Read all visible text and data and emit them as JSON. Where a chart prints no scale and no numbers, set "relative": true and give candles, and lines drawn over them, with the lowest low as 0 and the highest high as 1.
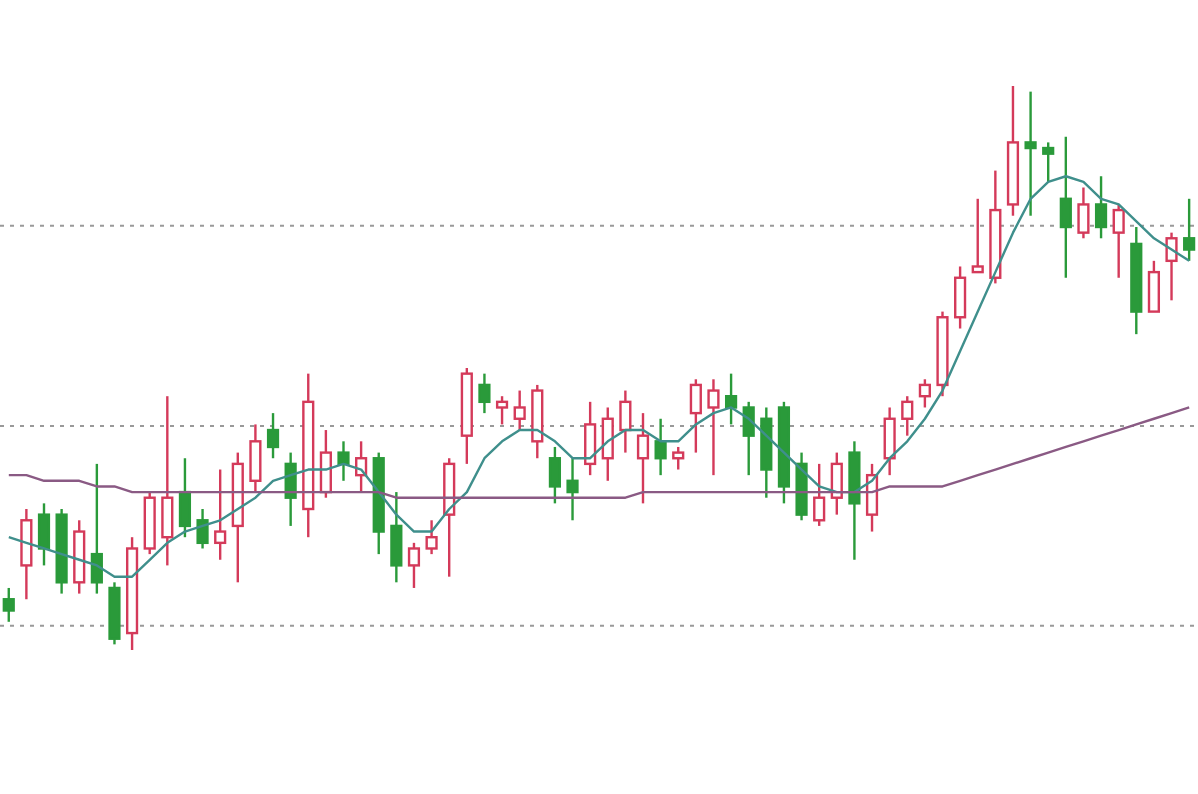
{
  "chart_data": {
    "type": "candlestick",
    "relative": true,
    "grid": "y",
    "categories": [
      null,
      null,
      null,
      null,
      null,
      null,
      null,
      null,
      null,
      null,
      null,
      null,
      null,
      null,
      null,
      null,
      null,
      null,
      null,
      null,
      null,
      null,
      null,
      null,
      null,
      null,
      null,
      null,
      null,
      null,
      null,
      null,
      null,
      null,
      null,
      null,
      null,
      null,
      null,
      null,
      null,
      null,
      null,
      null,
      null,
      null,
      null,
      null,
      null,
      null,
      null,
      null,
      null,
      null,
      null,
      null,
      null,
      null,
      null,
      null,
      null,
      null,
      null,
      null,
      null,
      null,
      null,
      null
    ],
    "ohlc": [
      [
        0.09,
        0.11,
        0.05,
        0.07
      ],
      [
        0.15,
        0.25,
        0.09,
        0.23
      ],
      [
        0.24,
        0.26,
        0.15,
        0.18
      ],
      [
        0.24,
        0.25,
        0.1,
        0.12
      ],
      [
        0.12,
        0.23,
        0.1,
        0.21
      ],
      [
        0.17,
        0.33,
        0.1,
        0.12
      ],
      [
        0.11,
        0.12,
        0.01,
        0.02
      ],
      [
        0.03,
        0.2,
        0,
        0.18
      ],
      [
        0.18,
        0.28,
        0.17,
        0.27
      ],
      [
        0.2,
        0.45,
        0.15,
        0.27
      ],
      [
        0.28,
        0.34,
        0.2,
        0.22
      ],
      [
        0.23,
        0.25,
        0.18,
        0.19
      ],
      [
        0.19,
        0.32,
        0.16,
        0.21
      ],
      [
        0.22,
        0.35,
        0.12,
        0.33
      ],
      [
        0.3,
        0.4,
        0.28,
        0.37
      ],
      [
        0.39,
        0.42,
        0.34,
        0.36
      ],
      [
        0.33,
        0.35,
        0.22,
        0.27
      ],
      [
        0.25,
        0.49,
        0.2,
        0.44
      ],
      [
        0.28,
        0.39,
        0.27,
        0.35
      ],
      [
        0.35,
        0.37,
        0.3,
        0.33
      ],
      [
        0.31,
        0.37,
        0.28,
        0.34
      ],
      [
        0.34,
        0.35,
        0.17,
        0.21
      ],
      [
        0.22,
        0.28,
        0.12,
        0.15
      ],
      [
        0.15,
        0.19,
        0.11,
        0.18
      ],
      [
        0.18,
        0.23,
        0.17,
        0.2
      ],
      [
        0.24,
        0.34,
        0.13,
        0.33
      ],
      [
        0.38,
        0.5,
        0.33,
        0.49
      ],
      [
        0.47,
        0.49,
        0.42,
        0.44
      ],
      [
        0.43,
        0.45,
        0.4,
        0.44
      ],
      [
        0.41,
        0.46,
        0.39,
        0.43
      ],
      [
        0.37,
        0.47,
        0.34,
        0.46
      ],
      [
        0.34,
        0.36,
        0.26,
        0.29
      ],
      [
        0.3,
        0.34,
        0.23,
        0.28
      ],
      [
        0.33,
        0.44,
        0.31,
        0.4
      ],
      [
        0.34,
        0.43,
        0.3,
        0.41
      ],
      [
        0.39,
        0.46,
        0.35,
        0.44
      ],
      [
        0.34,
        0.42,
        0.26,
        0.38
      ],
      [
        0.37,
        0.41,
        0.31,
        0.34
      ],
      [
        0.34,
        0.36,
        0.32,
        0.35
      ],
      [
        0.42,
        0.48,
        0.35,
        0.47
      ],
      [
        0.43,
        0.48,
        0.31,
        0.46
      ],
      [
        0.45,
        0.49,
        0.4,
        0.43
      ],
      [
        0.43,
        0.44,
        0.31,
        0.38
      ],
      [
        0.41,
        0.43,
        0.27,
        0.32
      ],
      [
        0.43,
        0.44,
        0.26,
        0.29
      ],
      [
        0.33,
        0.35,
        0.23,
        0.24
      ],
      [
        0.23,
        0.33,
        0.22,
        0.27
      ],
      [
        0.27,
        0.35,
        0.24,
        0.33
      ],
      [
        0.35,
        0.37,
        0.16,
        0.26
      ],
      [
        0.24,
        0.33,
        0.21,
        0.31
      ],
      [
        0.34,
        0.43,
        0.31,
        0.41
      ],
      [
        0.41,
        0.45,
        0.38,
        0.44
      ],
      [
        0.45,
        0.48,
        0.43,
        0.47
      ],
      [
        0.47,
        0.6,
        0.45,
        0.59
      ],
      [
        0.59,
        0.68,
        0.57,
        0.66
      ],
      [
        0.67,
        0.8,
        0.67,
        0.68
      ],
      [
        0.66,
        0.85,
        0.65,
        0.78
      ],
      [
        0.79,
        1,
        0.77,
        0.9
      ],
      [
        0.9,
        0.99,
        0.77,
        0.89
      ],
      [
        0.89,
        0.9,
        0.83,
        0.88
      ],
      [
        0.8,
        0.91,
        0.66,
        0.75
      ],
      [
        0.74,
        0.82,
        0.73,
        0.79
      ],
      [
        0.79,
        0.84,
        0.73,
        0.75
      ],
      [
        0.74,
        0.79,
        0.66,
        0.78
      ],
      [
        0.72,
        0.75,
        0.56,
        0.6
      ],
      [
        0.6,
        0.69,
        0.6,
        0.67
      ],
      [
        0.69,
        0.74,
        0.62,
        0.73
      ],
      [
        0.73,
        0.8,
        0.69,
        0.71
      ]
    ],
    "colors": [
      "#2a9a3a",
      "#d43a5a",
      "#2a9a3a",
      "#2a9a3a",
      "#d43a5a",
      "#2a9a3a",
      "#2a9a3a",
      "#d43a5a",
      "#d43a5a",
      "#d43a5a",
      "#2a9a3a",
      "#2a9a3a",
      "#d43a5a",
      "#d43a5a",
      "#d43a5a",
      "#2a9a3a",
      "#2a9a3a",
      "#d43a5a",
      "#d43a5a",
      "#2a9a3a",
      "#d43a5a",
      "#2a9a3a",
      "#2a9a3a",
      "#d43a5a",
      "#d43a5a",
      "#d43a5a",
      "#d43a5a",
      "#2a9a3a",
      "#d43a5a",
      "#d43a5a",
      "#d43a5a",
      "#2a9a3a",
      "#2a9a3a",
      "#d43a5a",
      "#d43a5a",
      "#d43a5a",
      "#d43a5a",
      "#2a9a3a",
      "#d43a5a",
      "#d43a5a",
      "#d43a5a",
      "#2a9a3a",
      "#2a9a3a",
      "#2a9a3a",
      "#2a9a3a",
      "#2a9a3a",
      "#d43a5a",
      "#d43a5a",
      "#2a9a3a",
      "#d43a5a",
      "#d43a5a",
      "#d43a5a",
      "#d43a5a",
      "#d43a5a",
      "#d43a5a",
      "#d43a5a",
      "#d43a5a",
      "#d43a5a",
      "#2a9a3a",
      "#2a9a3a",
      "#2a9a3a",
      "#d43a5a",
      "#2a9a3a",
      "#d43a5a",
      "#2a9a3a",
      "#d43a5a",
      "#d43a5a",
      "#2a9a3a"
    ],
    "series": [
      {
        "type": "line",
        "color": "#3f8f8c",
        "values": [
          0.2,
          0.19,
          0.18,
          0.17,
          0.16,
          0.15,
          0.13,
          0.13,
          0.16,
          0.19,
          0.21,
          0.22,
          0.23,
          0.25,
          0.27,
          0.3,
          0.31,
          0.32,
          0.32,
          0.33,
          0.32,
          0.28,
          0.24,
          0.21,
          0.21,
          0.25,
          0.28,
          0.34,
          0.37,
          0.39,
          0.39,
          0.37,
          0.34,
          0.34,
          0.37,
          0.39,
          0.39,
          0.37,
          0.37,
          0.4,
          0.42,
          0.43,
          0.41,
          0.38,
          0.35,
          0.32,
          0.29,
          0.28,
          0.28,
          0.3,
          0.34,
          0.37,
          0.41,
          0.46,
          0.53,
          0.6,
          0.67,
          0.74,
          0.8,
          0.83,
          0.84,
          0.83,
          0.8,
          0.79,
          0.76,
          0.73,
          0.71,
          0.69
        ]
      },
      {
        "type": "line",
        "color": "#8a5a84",
        "values": [
          0.31,
          0.31,
          0.3,
          0.3,
          0.3,
          0.29,
          0.29,
          0.28,
          0.28,
          0.28,
          0.28,
          0.28,
          0.28,
          0.28,
          0.28,
          0.28,
          0.28,
          0.28,
          0.28,
          0.28,
          0.28,
          0.28,
          0.27,
          0.27,
          0.27,
          0.27,
          0.27,
          0.27,
          0.27,
          0.27,
          0.27,
          0.27,
          0.27,
          0.27,
          0.27,
          0.27,
          0.28,
          0.28,
          0.28,
          0.28,
          0.28,
          0.28,
          0.28,
          0.28,
          0.28,
          0.28,
          0.28,
          0.28,
          0.28,
          0.28,
          0.29,
          0.29,
          0.29,
          0.29,
          0.3,
          0.31,
          0.32,
          0.33,
          0.34,
          0.35,
          0.36,
          0.37,
          0.38,
          0.39,
          0.4,
          0.41,
          0.42,
          0.43
        ]
      }
    ]
  }
}
